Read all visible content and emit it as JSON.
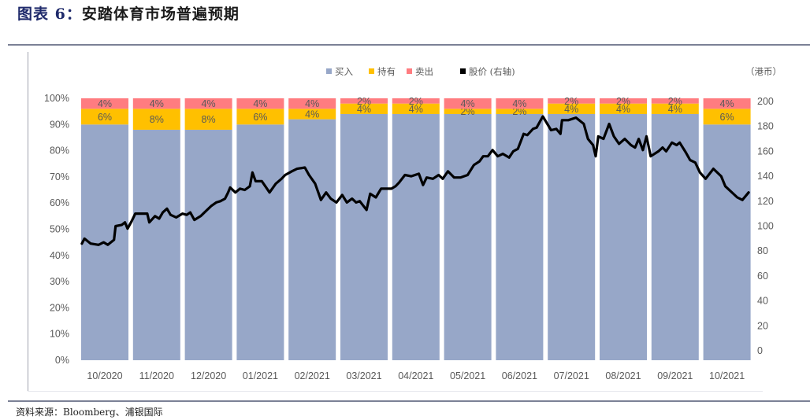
{
  "header": {
    "prefix": "图表 6：",
    "title": "安踏体育市场普遍预期"
  },
  "source": "资料来源：Bloomberg、浦银国际",
  "colors": {
    "buy": "#97a7c8",
    "hold": "#ffc000",
    "sell": "#ff7c80",
    "price": "#000000",
    "label_text": "#6b5a3a"
  },
  "chart_data": {
    "type": "bar",
    "subtype": "stacked-100-bar-with-line",
    "title": "安踏体育市场普遍预期",
    "categories": [
      "10/2020",
      "11/2020",
      "12/2020",
      "01/2021",
      "02/2021",
      "03/2021",
      "04/2021",
      "05/2021",
      "06/2021",
      "07/2021",
      "08/2021",
      "09/2021",
      "10/2021"
    ],
    "series": [
      {
        "name": "买入",
        "axis": "left",
        "values": [
          90,
          88,
          88,
          90,
          92,
          94,
          94,
          94,
          94,
          94,
          94,
          94,
          90
        ]
      },
      {
        "name": "持有",
        "axis": "left",
        "values": [
          6,
          8,
          8,
          6,
          4,
          4,
          4,
          2,
          2,
          4,
          4,
          4,
          6
        ]
      },
      {
        "name": "卖出",
        "axis": "left",
        "values": [
          4,
          4,
          4,
          4,
          4,
          2,
          2,
          4,
          4,
          2,
          2,
          2,
          4
        ]
      }
    ],
    "data_labels": {
      "hold": [
        "6%",
        "8%",
        "8%",
        "6%",
        "4%",
        "4%",
        "4%",
        "2%",
        "2%",
        "4%",
        "4%",
        "4%",
        "6%"
      ],
      "sell": [
        "4%",
        "4%",
        "4%",
        "4%",
        "4%",
        "2%",
        "2%",
        "4%",
        "4%",
        "2%",
        "2%",
        "2%",
        "4%"
      ]
    },
    "line_series": {
      "name": "股价 (右轴)",
      "axis": "right",
      "unit": "港币",
      "points": [
        [
          0.06,
          86
        ],
        [
          0.11,
          90
        ],
        [
          0.23,
          86
        ],
        [
          0.38,
          85
        ],
        [
          0.48,
          87
        ],
        [
          0.56,
          85
        ],
        [
          0.68,
          89
        ],
        [
          0.71,
          100
        ],
        [
          0.83,
          101
        ],
        [
          0.89,
          103
        ],
        [
          0.94,
          98
        ],
        [
          1.02,
          104
        ],
        [
          1.09,
          110
        ],
        [
          1.17,
          110
        ],
        [
          1.32,
          110
        ],
        [
          1.36,
          103
        ],
        [
          1.47,
          108
        ],
        [
          1.55,
          106
        ],
        [
          1.62,
          111
        ],
        [
          1.7,
          114
        ],
        [
          1.77,
          109
        ],
        [
          1.88,
          107
        ],
        [
          2.0,
          110
        ],
        [
          2.08,
          109
        ],
        [
          2.15,
          111
        ],
        [
          2.23,
          105
        ],
        [
          2.35,
          108
        ],
        [
          2.55,
          116
        ],
        [
          2.65,
          119
        ],
        [
          2.73,
          120
        ],
        [
          2.82,
          122
        ],
        [
          2.88,
          127
        ],
        [
          2.92,
          131
        ],
        [
          3.02,
          127
        ],
        [
          3.11,
          130
        ],
        [
          3.2,
          129
        ],
        [
          3.3,
          132
        ],
        [
          3.35,
          143
        ],
        [
          3.41,
          136
        ],
        [
          3.53,
          136
        ],
        [
          3.68,
          127
        ],
        [
          3.8,
          134
        ],
        [
          3.91,
          138
        ],
        [
          3.98,
          141
        ],
        [
          4.11,
          144
        ],
        [
          4.21,
          146
        ],
        [
          4.36,
          147
        ],
        [
          4.44,
          141
        ],
        [
          4.56,
          134
        ],
        [
          4.67,
          121
        ],
        [
          4.77,
          127
        ],
        [
          4.86,
          122
        ],
        [
          4.97,
          119
        ],
        [
          5.08,
          125
        ],
        [
          5.17,
          119
        ],
        [
          5.27,
          122
        ],
        [
          5.35,
          119
        ],
        [
          5.42,
          120
        ],
        [
          5.55,
          113
        ],
        [
          5.62,
          126
        ],
        [
          5.73,
          123
        ],
        [
          5.83,
          130
        ],
        [
          6.03,
          130
        ],
        [
          6.11,
          132
        ],
        [
          6.18,
          135
        ],
        [
          6.29,
          141
        ],
        [
          6.41,
          140
        ],
        [
          6.56,
          142
        ],
        [
          6.64,
          133
        ],
        [
          6.71,
          139
        ],
        [
          6.83,
          138
        ],
        [
          6.94,
          141
        ],
        [
          7.02,
          138
        ],
        [
          7.12,
          144
        ],
        [
          7.24,
          139
        ],
        [
          7.36,
          139
        ],
        [
          7.5,
          141
        ],
        [
          7.62,
          149
        ],
        [
          7.73,
          152
        ],
        [
          7.8,
          156
        ],
        [
          7.89,
          156
        ],
        [
          7.98,
          161
        ],
        [
          8.08,
          156
        ],
        [
          8.18,
          158
        ],
        [
          8.3,
          155
        ],
        [
          8.38,
          160
        ],
        [
          8.47,
          162
        ],
        [
          8.58,
          174
        ],
        [
          8.65,
          173
        ],
        [
          8.76,
          178
        ],
        [
          8.83,
          179
        ],
        [
          8.95,
          188
        ],
        [
          9.11,
          177
        ],
        [
          9.21,
          178
        ],
        [
          9.29,
          174
        ],
        [
          9.32,
          185
        ],
        [
          9.44,
          185
        ],
        [
          9.59,
          187
        ],
        [
          9.74,
          182
        ],
        [
          9.82,
          170
        ],
        [
          9.92,
          165
        ],
        [
          9.97,
          156
        ],
        [
          10.02,
          172
        ],
        [
          10.12,
          170
        ],
        [
          10.23,
          182
        ],
        [
          10.32,
          172
        ],
        [
          10.42,
          166
        ],
        [
          10.53,
          170
        ],
        [
          10.65,
          165
        ],
        [
          10.73,
          163
        ],
        [
          10.8,
          170
        ],
        [
          10.88,
          161
        ],
        [
          10.95,
          172
        ],
        [
          11.03,
          156
        ],
        [
          11.18,
          160
        ],
        [
          11.26,
          163
        ],
        [
          11.33,
          160
        ],
        [
          11.44,
          167
        ],
        [
          11.53,
          165
        ],
        [
          11.59,
          167
        ],
        [
          11.71,
          159
        ],
        [
          11.79,
          153
        ],
        [
          11.89,
          151
        ],
        [
          11.98,
          143
        ],
        [
          12.09,
          138
        ],
        [
          12.24,
          146
        ],
        [
          12.39,
          140
        ],
        [
          12.47,
          132
        ],
        [
          12.7,
          123
        ],
        [
          12.8,
          121
        ],
        [
          12.92,
          127
        ]
      ]
    },
    "left_axis": {
      "min": 0,
      "max": 100,
      "ticks": [
        "0%",
        "10%",
        "20%",
        "30%",
        "40%",
        "50%",
        "60%",
        "70%",
        "80%",
        "90%",
        "100%"
      ]
    },
    "right_axis": {
      "min": 0,
      "max": 200,
      "ticks": [
        "0",
        "20",
        "40",
        "60",
        "80",
        "100",
        "120",
        "140",
        "160",
        "180",
        "200"
      ],
      "unit_label": "（港币）"
    },
    "legend": [
      {
        "key": "buy",
        "label": "买入"
      },
      {
        "key": "hold",
        "label": "持有"
      },
      {
        "key": "sell",
        "label": "卖出"
      },
      {
        "key": "price",
        "label": "股价 (右轴)"
      }
    ],
    "legend_position": "top",
    "grid": false
  }
}
